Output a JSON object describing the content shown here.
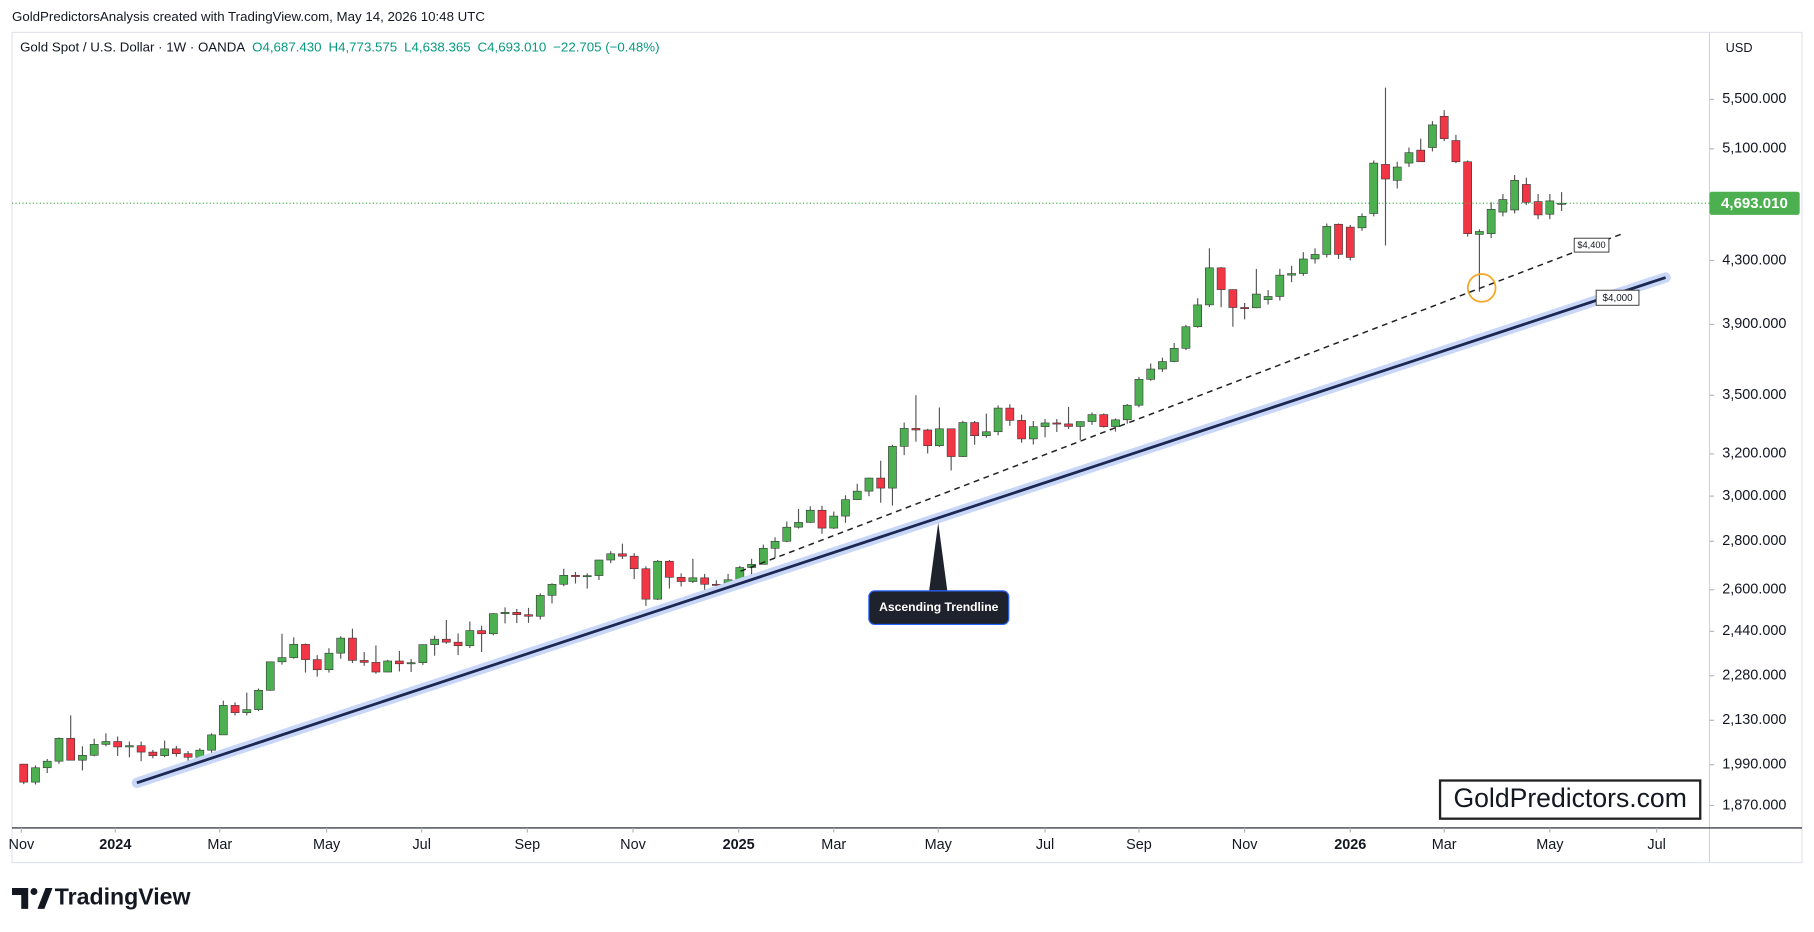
{
  "attribution": "GoldPredictorsAnalysis created with TradingView.com, May 14, 2026 10:48 UTC",
  "legend": {
    "symbol": "Gold Spot / U.S. Dollar · 1W · OANDA",
    "open": "O4,687.430",
    "high": "H4,773.575",
    "low": "L4,638.365",
    "close": "C4,693.010",
    "change": "−22.705 (−0.48%)"
  },
  "currency": "USD",
  "last_price_label": "4,693.010",
  "watermark": "GoldPredictors.com",
  "logo": "TradingView",
  "chart_data": {
    "type": "candlestick",
    "annotations": {
      "trendline": "Ascending Trendline",
      "level_upper": "$4,400",
      "level_lower": "$4,000"
    },
    "up_color": "#4caf50",
    "down_color": "#f23645",
    "log_scale": true,
    "ylim": [
      1807,
      6093
    ],
    "yticks": [
      {
        "value": 1870,
        "label": "1,870.000"
      },
      {
        "value": 1990,
        "label": "1,990.000"
      },
      {
        "value": 2130,
        "label": "2,130.000"
      },
      {
        "value": 2280,
        "label": "2,280.000"
      },
      {
        "value": 2440,
        "label": "2,440.000"
      },
      {
        "value": 2600,
        "label": "2,600.000"
      },
      {
        "value": 2800,
        "label": "2,800.000"
      },
      {
        "value": 3000,
        "label": "3,000.000"
      },
      {
        "value": 3200,
        "label": "3,200.000"
      },
      {
        "value": 3500,
        "label": "3,500.000"
      },
      {
        "value": 3900,
        "label": "3,900.000"
      },
      {
        "value": 4300,
        "label": "4,300.000"
      },
      {
        "value": 5100,
        "label": "5,100.000"
      },
      {
        "value": 5500,
        "label": "5,500.000"
      }
    ],
    "xlim": [
      -1,
      143.6
    ],
    "xticks": [
      {
        "value": -0.2,
        "label": "Nov"
      },
      {
        "value": 7.8,
        "label": "2024"
      },
      {
        "value": 16.7,
        "label": "Mar"
      },
      {
        "value": 25.8,
        "label": "May"
      },
      {
        "value": 33.9,
        "label": "Jul"
      },
      {
        "value": 42.9,
        "label": "Sep"
      },
      {
        "value": 51.9,
        "label": "Nov"
      },
      {
        "value": 60.9,
        "label": "2025"
      },
      {
        "value": 69.0,
        "label": "Mar"
      },
      {
        "value": 77.9,
        "label": "May"
      },
      {
        "value": 87.0,
        "label": "Jul"
      },
      {
        "value": 95.0,
        "label": "Sep"
      },
      {
        "value": 104.0,
        "label": "Nov"
      },
      {
        "value": 113.0,
        "label": "2026"
      },
      {
        "value": 121.0,
        "label": "Mar"
      },
      {
        "value": 130.0,
        "label": "May"
      },
      {
        "value": 139.1,
        "label": "Jul"
      }
    ],
    "open": [
      1992,
      1938,
      1981,
      2001,
      2072,
      2004,
      2019,
      2053,
      2062,
      2045,
      2049,
      2029,
      2018,
      2039,
      2024,
      2013,
      2035,
      2083,
      2179,
      2155,
      2165,
      2230,
      2329,
      2344,
      2392,
      2337,
      2301,
      2360,
      2415,
      2334,
      2327,
      2293,
      2332,
      2322,
      2326,
      2391,
      2411,
      2400,
      2387,
      2443,
      2431,
      2507,
      2512,
      2503,
      2497,
      2578,
      2622,
      2658,
      2653,
      2657,
      2721,
      2747,
      2737,
      2685,
      2563,
      2716,
      2650,
      2633,
      2648,
      2622,
      2621,
      2640,
      2690,
      2703,
      2770,
      2800,
      2861,
      2882,
      2936,
      2857,
      2910,
      2984,
      3023,
      3084,
      3037,
      3237,
      3327,
      3319,
      3240,
      3325,
      3187,
      3357,
      3290,
      3310,
      3432,
      3368,
      3274,
      3336,
      3355,
      3350,
      3337,
      3362,
      3398,
      3336,
      3371,
      3447,
      3586,
      3643,
      3685,
      3760,
      3886,
      4018,
      4252,
      4113,
      4002,
      4000,
      4050,
      4070,
      4205,
      4215,
      4310,
      4340,
      4545,
      4525,
      4520,
      4620,
      4980,
      4860,
      4990,
      5090,
      5110,
      5360,
      5165,
      5000,
      4475,
      4480,
      4630,
      4645,
      4830,
      4705,
      4615,
      4687.43
    ],
    "high": [
      1993,
      1988,
      2008,
      2075,
      2146,
      2047,
      2071,
      2088,
      2078,
      2062,
      2062,
      2036,
      2065,
      2048,
      2032,
      2041,
      2088,
      2195,
      2189,
      2222,
      2236,
      2330,
      2431,
      2418,
      2395,
      2353,
      2378,
      2422,
      2450,
      2364,
      2388,
      2336,
      2368,
      2339,
      2392,
      2424,
      2483,
      2432,
      2477,
      2461,
      2509,
      2531,
      2525,
      2529,
      2586,
      2626,
      2685,
      2672,
      2666,
      2722,
      2758,
      2790,
      2750,
      2695,
      2721,
      2721,
      2666,
      2726,
      2664,
      2638,
      2664,
      2697,
      2726,
      2786,
      2817,
      2886,
      2942,
      2954,
      2956,
      2930,
      3004,
      3057,
      3086,
      3167,
      3245,
      3357,
      3500,
      3325,
      3435,
      3325,
      3366,
      3365,
      3403,
      3446,
      3452,
      3398,
      3365,
      3375,
      3375,
      3438,
      3363,
      3409,
      3404,
      3378,
      3453,
      3600,
      3674,
      3707,
      3791,
      3897,
      4059,
      4381,
      4257,
      4115,
      4030,
      4245,
      4110,
      4245,
      4265,
      4355,
      4380,
      4550,
      4550,
      4540,
      4620,
      5010,
      5600,
      5000,
      5110,
      5180,
      5320,
      5410,
      5210,
      5010,
      4510,
      4700,
      4760,
      4900,
      4880,
      4760,
      4760,
      4773.575
    ],
    "low": [
      1932,
      1931,
      1965,
      1993,
      2010,
      1973,
      2016,
      2047,
      2017,
      2013,
      2001,
      2010,
      2013,
      2015,
      1984,
      2009,
      2025,
      2083,
      2146,
      2146,
      2160,
      2228,
      2319,
      2340,
      2291,
      2277,
      2291,
      2340,
      2325,
      2315,
      2287,
      2292,
      2295,
      2293,
      2318,
      2351,
      2394,
      2353,
      2379,
      2364,
      2425,
      2470,
      2471,
      2472,
      2485,
      2546,
      2614,
      2625,
      2605,
      2639,
      2708,
      2725,
      2643,
      2537,
      2560,
      2605,
      2613,
      2627,
      2583,
      2605,
      2596,
      2614,
      2657,
      2703,
      2730,
      2796,
      2855,
      2880,
      2832,
      2853,
      2880,
      2982,
      3000,
      2970,
      2957,
      3194,
      3260,
      3202,
      3235,
      3120,
      3185,
      3245,
      3280,
      3292,
      3340,
      3255,
      3246,
      3282,
      3309,
      3324,
      3268,
      3345,
      3331,
      3311,
      3351,
      3436,
      3578,
      3627,
      3681,
      3750,
      3880,
      4005,
      4004,
      3886,
      3930,
      3998,
      4020,
      4045,
      4160,
      4200,
      4280,
      4320,
      4310,
      4300,
      4500,
      4600,
      4400,
      4800,
      4960,
      5000,
      5080,
      5160,
      4990,
      4460,
      4100,
      4450,
      4600,
      4620,
      4680,
      4580,
      4580,
      4638.365
    ],
    "close": [
      1938,
      1981,
      2001,
      2072,
      2004,
      2019,
      2053,
      2062,
      2045,
      2049,
      2029,
      2018,
      2039,
      2024,
      2013,
      2035,
      2083,
      2179,
      2155,
      2165,
      2230,
      2329,
      2344,
      2392,
      2337,
      2301,
      2360,
      2415,
      2334,
      2327,
      2293,
      2332,
      2322,
      2326,
      2391,
      2411,
      2400,
      2387,
      2443,
      2431,
      2507,
      2512,
      2503,
      2497,
      2578,
      2622,
      2658,
      2653,
      2657,
      2721,
      2747,
      2737,
      2685,
      2563,
      2716,
      2650,
      2633,
      2648,
      2622,
      2621,
      2640,
      2690,
      2703,
      2770,
      2800,
      2861,
      2882,
      2936,
      2857,
      2910,
      2984,
      3023,
      3084,
      3037,
      3237,
      3327,
      3319,
      3240,
      3325,
      3187,
      3357,
      3290,
      3310,
      3432,
      3368,
      3274,
      3336,
      3355,
      3350,
      3337,
      3362,
      3398,
      3336,
      3371,
      3447,
      3586,
      3643,
      3685,
      3760,
      3886,
      4018,
      4252,
      4113,
      4002,
      4000,
      4085,
      4070,
      4205,
      4215,
      4310,
      4340,
      4530,
      4340,
      4320,
      4600,
      4990,
      4870,
      4960,
      5070,
      5000,
      5290,
      5180,
      5000,
      4480,
      4495,
      4650,
      4720,
      4860,
      4700,
      4610,
      4710,
      4693.01
    ]
  }
}
